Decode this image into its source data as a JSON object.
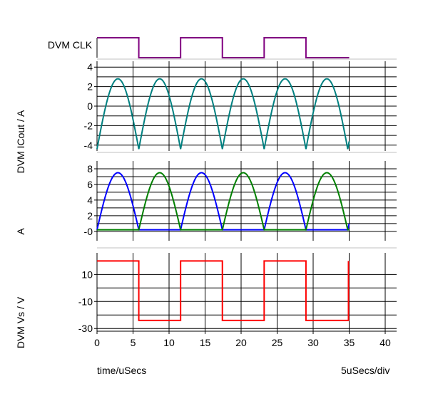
{
  "footer": {
    "x_unit_label": "time/uSecs",
    "scale_label": "5uSecs/div"
  },
  "chart_data": [
    {
      "type": "line",
      "ylabel": "DVM CLK",
      "digital": true,
      "x_ticks": [
        0,
        5,
        10,
        15,
        20,
        25,
        30,
        35,
        40
      ],
      "xlim": [
        0,
        40
      ],
      "series": [
        {
          "color": "#800080",
          "points": [
            [
              0,
              1
            ],
            [
              5.8,
              1
            ],
            [
              5.8,
              0
            ],
            [
              11.6,
              0
            ],
            [
              11.6,
              1
            ],
            [
              17.4,
              1
            ],
            [
              17.4,
              0
            ],
            [
              23.2,
              0
            ],
            [
              23.2,
              1
            ],
            [
              29,
              1
            ],
            [
              29,
              0
            ],
            [
              35,
              0
            ]
          ]
        }
      ]
    },
    {
      "type": "line",
      "ylabel": "DVM ICout / A",
      "ylim": [
        -4.6,
        4.6
      ],
      "y_ticks": [
        -4,
        -2,
        0,
        2,
        4
      ],
      "y_tick_labels": [
        "-4",
        "-2",
        "0",
        "2",
        "4"
      ],
      "xlim": [
        0,
        40
      ],
      "series": [
        {
          "color": "#008080",
          "wave": "abs-sine-offset",
          "half_period": 5.8,
          "amplitude": 7.2,
          "offset": -4.4,
          "x_range": [
            0,
            35
          ]
        }
      ]
    },
    {
      "type": "line",
      "ylabel": "A",
      "ylim": [
        -1.2,
        9
      ],
      "y_ticks": [
        0,
        2,
        4,
        6,
        8
      ],
      "y_tick_labels": [
        "-0",
        "2",
        "4",
        "6",
        "8"
      ],
      "xlim": [
        0,
        40
      ],
      "series": [
        {
          "color": "#0000ff",
          "wave": "half-sine-alternating",
          "half_period": 5.8,
          "amplitude": 7.3,
          "baseline": 0.2,
          "active_phase": 0,
          "x_range": [
            0,
            35
          ]
        },
        {
          "color": "#008000",
          "wave": "half-sine-alternating",
          "half_period": 5.8,
          "amplitude": 7.3,
          "baseline": 0.2,
          "active_phase": 1,
          "x_range": [
            0,
            35
          ]
        }
      ]
    },
    {
      "type": "line",
      "ylabel": "DVM Vs / V",
      "ylim": [
        -32,
        26
      ],
      "y_ticks": [
        -30,
        -10,
        10
      ],
      "y_tick_labels": [
        "-30",
        "-10",
        "10"
      ],
      "x_ticks": [
        0,
        5,
        10,
        15,
        20,
        25,
        30,
        35,
        40
      ],
      "x_tick_labels": [
        "0",
        "5",
        "10",
        "15",
        "20",
        "25",
        "30",
        "35",
        "40"
      ],
      "xlim": [
        0,
        40
      ],
      "series": [
        {
          "color": "#ff0000",
          "points": [
            [
              0,
              20
            ],
            [
              5.8,
              20
            ],
            [
              5.8,
              -24
            ],
            [
              11.6,
              -24
            ],
            [
              11.6,
              20
            ],
            [
              17.4,
              20
            ],
            [
              17.4,
              -24
            ],
            [
              23.2,
              -24
            ],
            [
              23.2,
              20
            ],
            [
              29,
              20
            ],
            [
              29,
              -24
            ],
            [
              34.9,
              -24
            ],
            [
              34.9,
              20
            ]
          ]
        }
      ]
    }
  ]
}
